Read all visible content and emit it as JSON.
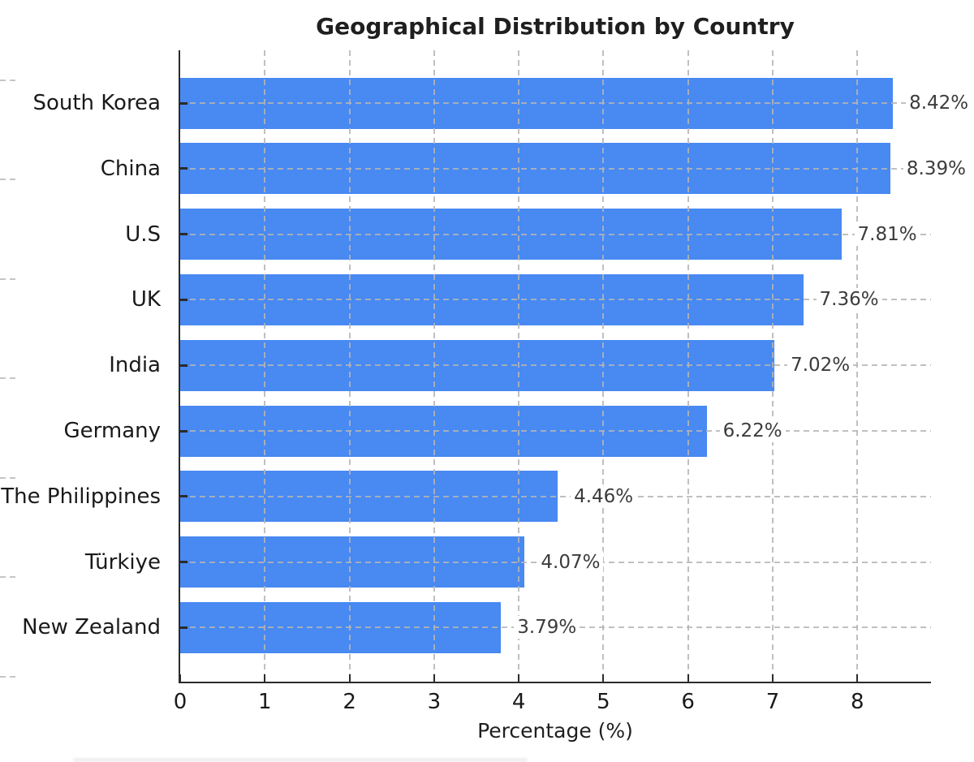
{
  "chart_data": {
    "type": "bar",
    "orientation": "horizontal",
    "title": "Geographical Distribution by Country",
    "xlabel": "Percentage (%)",
    "ylabel": "",
    "categories": [
      "South Korea",
      "China",
      "U.S",
      "UK",
      "India",
      "Germany",
      "The Philippines",
      "Türkiye",
      "New Zealand"
    ],
    "values": [
      8.42,
      8.39,
      7.81,
      7.36,
      7.02,
      6.22,
      4.46,
      4.07,
      3.79
    ],
    "value_labels": [
      "8.42%",
      "8.39%",
      "7.81%",
      "7.36%",
      "7.02%",
      "6.22%",
      "4.46%",
      "4.07%",
      "3.79%"
    ],
    "x_ticks": [
      0,
      1,
      2,
      3,
      4,
      5,
      6,
      7,
      8
    ],
    "xlim": [
      0,
      8.87
    ],
    "grid": true,
    "gridline_style": "dashed",
    "legend": null,
    "colors": {
      "bar": "#4889f2",
      "grid": "#b5b5b5",
      "axis": "#2b2b2b",
      "title_text": "#1f1f1f",
      "label_text": "#1a1a1a",
      "value_text": "#3c3c3c",
      "background": "#ffffff"
    }
  }
}
